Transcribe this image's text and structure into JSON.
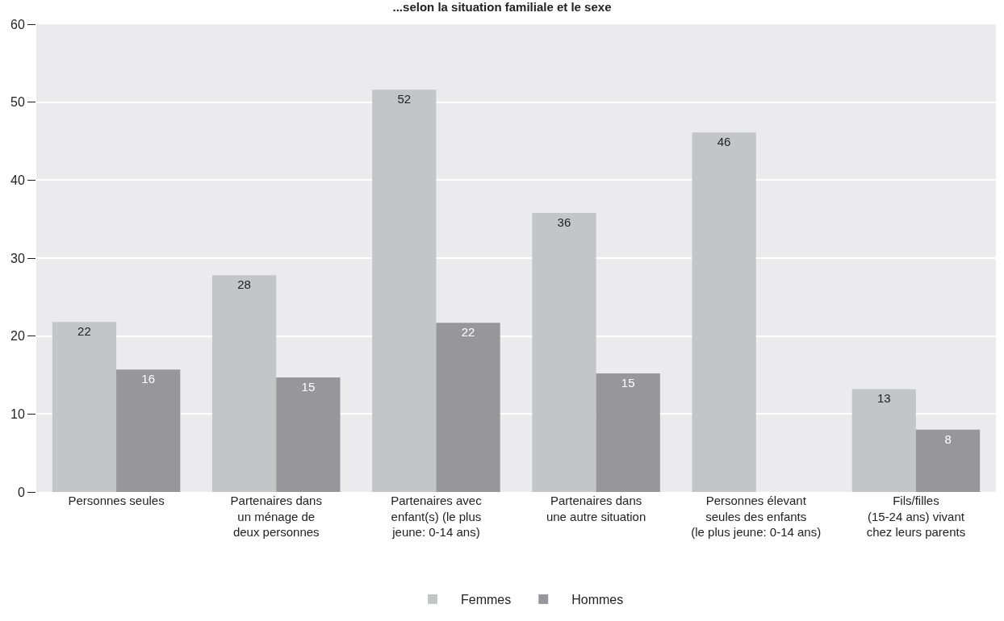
{
  "chart_data": {
    "type": "bar",
    "title": "...selon la situation familiale et le sexe",
    "categories": [
      "Personnes seules",
      "Partenaires dans\nun ménage de\ndeux personnes",
      "Partenaires avec\nenfant(s) (le plus\njeune: 0-14 ans)",
      "Partenaires dans\nune autre situation",
      "Personnes élevant\nseules des enfants\n(le plus jeune: 0-14 ans)",
      "Fils/filles\n(15-24 ans) vivant\nchez leurs parents"
    ],
    "series": [
      {
        "name": "Femmes",
        "color": "#c4c5c7",
        "values": [
          21.8,
          27.8,
          51.6,
          35.8,
          46.1,
          13.2
        ],
        "value_labels": [
          "22",
          "28",
          "52",
          "36",
          "46",
          "13"
        ]
      },
      {
        "name": "Hommes",
        "color": "#97969b",
        "values": [
          15.7,
          14.7,
          21.7,
          15.2,
          null,
          8.0
        ],
        "value_labels": [
          "16",
          "15",
          "22",
          "15",
          null,
          "8"
        ]
      }
    ],
    "ylim": [
      0,
      60
    ],
    "yticks": [
      0,
      10,
      20,
      30,
      40,
      50,
      60
    ],
    "grid": "y",
    "legend": "bottom"
  }
}
